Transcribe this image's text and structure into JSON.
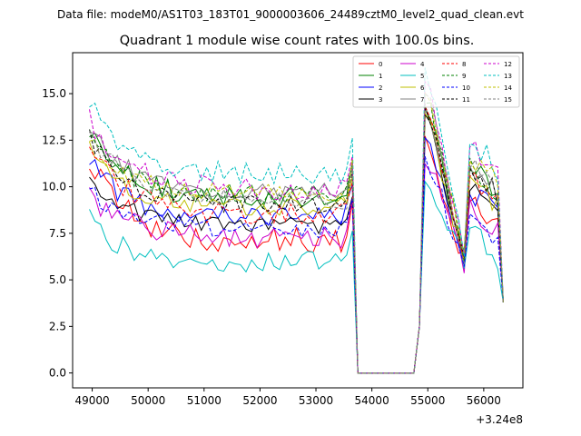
{
  "chart_data": {
    "type": "line",
    "suptitle": "Data file: modeM0/AS1T03_183T01_9000003606_24489cztM0_level2_quad_clean.evt",
    "title": "Quadrant 1 module wise count rates with 100.0s bins.",
    "xlabel": "",
    "ylabel": "",
    "x_offset_label": "+3.24e8",
    "xlim": [
      48650,
      56700
    ],
    "ylim": [
      -0.8,
      17.2
    ],
    "xticks": [
      49000,
      50000,
      51000,
      52000,
      53000,
      54000,
      55000,
      56000
    ],
    "yticks": [
      0.0,
      2.5,
      5.0,
      7.5,
      10.0,
      12.5,
      15.0
    ],
    "xtick_labels": [
      "49000",
      "50000",
      "51000",
      "52000",
      "53000",
      "54000",
      "55000",
      "56000"
    ],
    "ytick_labels": [
      "0.0",
      "2.5",
      "5.0",
      "7.5",
      "10.0",
      "12.5",
      "15.0"
    ],
    "legend_location": "top-right",
    "series": [
      {
        "name": "0",
        "color": "#ff0000",
        "dash": false,
        "start": 11.6,
        "level": 7.1,
        "amp": 0.7,
        "r1": 12.6,
        "r2": 9.2
      },
      {
        "name": "1",
        "color": "#008000",
        "dash": false,
        "start": 13.0,
        "level": 9.4,
        "amp": 0.6,
        "r1": 14.5,
        "r2": 11.0
      },
      {
        "name": "2",
        "color": "#0000ff",
        "dash": false,
        "start": 11.3,
        "level": 8.6,
        "amp": 0.7,
        "r1": 12.7,
        "r2": 9.8
      },
      {
        "name": "3",
        "color": "#000000",
        "dash": false,
        "start": 10.4,
        "level": 7.9,
        "amp": 0.5,
        "r1": 13.5,
        "r2": 10.1
      },
      {
        "name": "4",
        "color": "#cc00cc",
        "dash": false,
        "start": 9.6,
        "level": 7.3,
        "amp": 0.6,
        "r1": 11.5,
        "r2": 9.0
      },
      {
        "name": "5",
        "color": "#00bfbf",
        "dash": false,
        "start": 8.2,
        "level": 6.0,
        "amp": 0.6,
        "r1": 10.1,
        "r2": 7.5
      },
      {
        "name": "6",
        "color": "#bfbf00",
        "dash": false,
        "start": 12.1,
        "level": 8.9,
        "amp": 0.5,
        "r1": 13.6,
        "r2": 10.4
      },
      {
        "name": "7",
        "color": "#808080",
        "dash": false,
        "start": 13.4,
        "level": 9.7,
        "amp": 0.5,
        "r1": 14.3,
        "r2": 11.1
      },
      {
        "name": "8",
        "color": "#ff0000",
        "dash": true,
        "start": 12.5,
        "level": 8.5,
        "amp": 0.6,
        "r1": 14.2,
        "r2": 10.6
      },
      {
        "name": "9",
        "color": "#008000",
        "dash": true,
        "start": 13.2,
        "level": 9.5,
        "amp": 0.6,
        "r1": 14.7,
        "r2": 11.2
      },
      {
        "name": "10",
        "color": "#0000ff",
        "dash": true,
        "start": 9.8,
        "level": 7.7,
        "amp": 0.5,
        "r1": 11.4,
        "r2": 8.3
      },
      {
        "name": "11",
        "color": "#000000",
        "dash": true,
        "start": 12.8,
        "level": 9.0,
        "amp": 0.5,
        "r1": 13.9,
        "r2": 10.9
      },
      {
        "name": "12",
        "color": "#cc00cc",
        "dash": true,
        "start": 13.6,
        "level": 9.9,
        "amp": 0.6,
        "r1": 15.6,
        "r2": 12.1
      },
      {
        "name": "13",
        "color": "#00bfbf",
        "dash": true,
        "start": 14.7,
        "level": 10.7,
        "amp": 0.6,
        "r1": 16.2,
        "r2": 12.4
      },
      {
        "name": "14",
        "color": "#bfbf00",
        "dash": true,
        "start": 12.6,
        "level": 9.6,
        "amp": 0.5,
        "r1": 15.2,
        "r2": 11.6
      },
      {
        "name": "15",
        "color": "#808080",
        "dash": true,
        "start": 13.0,
        "level": 9.3,
        "amp": 0.5,
        "r1": 15.0,
        "r2": 11.3
      }
    ]
  }
}
